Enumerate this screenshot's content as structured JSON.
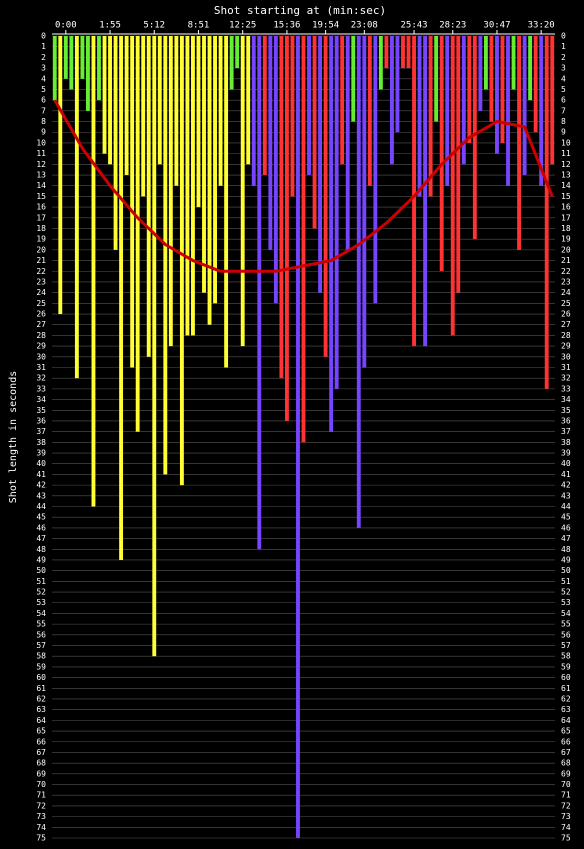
{
  "chart_data": {
    "type": "bar",
    "title": "Shot starting at (min:sec)",
    "y_label": "Shot length in seconds",
    "xlim": [
      -0.5,
      90.5
    ],
    "xticks": [
      {
        "value": 2,
        "label": "0:00"
      },
      {
        "value": 10,
        "label": "1:55"
      },
      {
        "value": 18,
        "label": "5:12"
      },
      {
        "value": 26,
        "label": "8:51"
      },
      {
        "value": 34,
        "label": "12:25"
      },
      {
        "value": 42,
        "label": "15:36"
      },
      {
        "value": 49,
        "label": "19:54"
      },
      {
        "value": 56,
        "label": "23:08"
      },
      {
        "value": 65,
        "label": "25:43"
      },
      {
        "value": 72,
        "label": "28:23"
      },
      {
        "value": 80,
        "label": "30:47"
      },
      {
        "value": 88,
        "label": "33:20"
      }
    ],
    "ylim": [
      0,
      75
    ],
    "yticks": [
      0,
      1,
      2,
      3,
      4,
      5,
      6,
      7,
      8,
      9,
      10,
      11,
      12,
      13,
      14,
      15,
      16,
      17,
      18,
      19,
      20,
      21,
      22,
      23,
      24,
      25,
      26,
      27,
      28,
      29,
      30,
      31,
      32,
      33,
      34,
      35,
      36,
      37,
      38,
      39,
      40,
      41,
      42,
      43,
      44,
      45,
      46,
      47,
      48,
      49,
      50,
      51,
      52,
      53,
      54,
      55,
      56,
      57,
      58,
      59,
      60,
      61,
      62,
      63,
      64,
      65,
      66,
      67,
      68,
      69,
      70,
      71,
      72,
      73,
      74,
      75
    ],
    "grid": true,
    "values": [
      6,
      26,
      4,
      5,
      32,
      4,
      7,
      44,
      6,
      11,
      12,
      20,
      49,
      13,
      31,
      37,
      15,
      30,
      58,
      12,
      41,
      29,
      14,
      42,
      28,
      28,
      16,
      24,
      27,
      25,
      14,
      31,
      5,
      3,
      29,
      12,
      14,
      48,
      13,
      20,
      25,
      32,
      36,
      15,
      75,
      38,
      13,
      18,
      24,
      30,
      37,
      33,
      12,
      20,
      8,
      46,
      31,
      14,
      25,
      5,
      3,
      12,
      9,
      3,
      3,
      29,
      15,
      29,
      15,
      8,
      22,
      14,
      28,
      24,
      12,
      10,
      19,
      7,
      5,
      8,
      11,
      10,
      14,
      5,
      20,
      13,
      6,
      9,
      14,
      33,
      12
    ],
    "colors": [
      "#66ee33",
      "#ffff33",
      "#66ee33",
      "#66ee33",
      "#ffff33",
      "#66ee33",
      "#66ee33",
      "#ffff33",
      "#66ee33",
      "#ffff33",
      "#ffff33",
      "#ffff33",
      "#ffff33",
      "#ffff33",
      "#ffff33",
      "#ffff33",
      "#ffff33",
      "#ffff33",
      "#ffff33",
      "#ffff33",
      "#ffff33",
      "#ffff33",
      "#ffff33",
      "#ffff33",
      "#ffff33",
      "#ffff33",
      "#ffff33",
      "#ffff33",
      "#ffff33",
      "#ffff33",
      "#ffff33",
      "#ffff33",
      "#66ee33",
      "#66ee33",
      "#ffff33",
      "#ffff33",
      "#7744ff",
      "#7744ff",
      "#ff3333",
      "#7744ff",
      "#7744ff",
      "#ff3333",
      "#ff3333",
      "#ff3333",
      "#7744ff",
      "#ff3333",
      "#7744ff",
      "#ff3333",
      "#7744ff",
      "#ff3333",
      "#7744ff",
      "#7744ff",
      "#ff3333",
      "#7744ff",
      "#66ee33",
      "#7744ff",
      "#7744ff",
      "#ff3333",
      "#7744ff",
      "#66ee33",
      "#ff3333",
      "#7744ff",
      "#7744ff",
      "#ff3333",
      "#ff3333",
      "#ff3333",
      "#7744ff",
      "#7744ff",
      "#ff3333",
      "#66ee33",
      "#ff3333",
      "#7744ff",
      "#ff3333",
      "#ff3333",
      "#7744ff",
      "#ff3333",
      "#ff3333",
      "#7744ff",
      "#66ee33",
      "#ff3333",
      "#7744ff",
      "#ff3333",
      "#7744ff",
      "#66ee33",
      "#ff3333",
      "#7744ff",
      "#66ee33",
      "#ff3333",
      "#7744ff",
      "#ff3333",
      "#ff3333"
    ],
    "trend": {
      "color": "#cc0000",
      "x": [
        0,
        5,
        10,
        15,
        20,
        25,
        30,
        35,
        40,
        45,
        50,
        55,
        60,
        65,
        70,
        75,
        80,
        85,
        90
      ],
      "values": [
        6,
        10.5,
        14,
        17,
        19.5,
        21,
        22,
        22,
        22,
        21.5,
        21,
        19.5,
        17.5,
        15,
        12,
        9.5,
        8,
        8.5,
        15
      ]
    }
  }
}
